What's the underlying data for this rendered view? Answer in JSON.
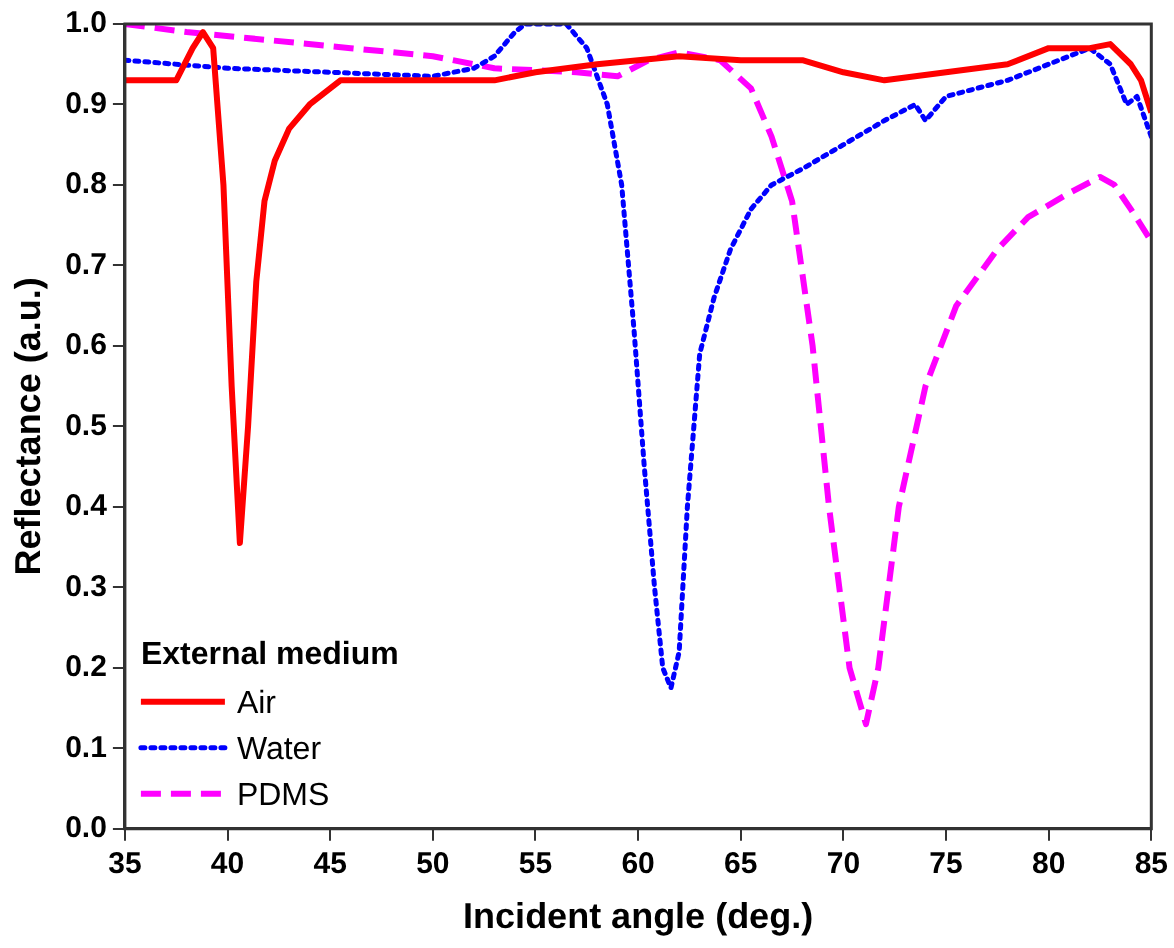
{
  "chart_data": {
    "type": "line",
    "xlabel": "Incident angle (deg.)",
    "ylabel": "Reflectance (a.u.)",
    "legend_title": "External medium",
    "legend": "bottom left",
    "grid": false,
    "marker": "none",
    "xlim": [
      35,
      85
    ],
    "xticks": [
      35,
      40,
      45,
      50,
      55,
      60,
      65,
      70,
      75,
      80,
      85
    ],
    "ylim": [
      0,
      1
    ],
    "yticks": [
      {
        "value": 0,
        "label": "0.0"
      },
      {
        "value": 0.1,
        "label": "0.1"
      },
      {
        "value": 0.2,
        "label": "0.2"
      },
      {
        "value": 0.3,
        "label": "0.3"
      },
      {
        "value": 0.4,
        "label": "0.4"
      },
      {
        "value": 0.5,
        "label": "0.5"
      },
      {
        "value": 0.6,
        "label": "0.6"
      },
      {
        "value": 0.7,
        "label": "0.7"
      },
      {
        "value": 0.8,
        "label": "0.8"
      },
      {
        "value": 0.9,
        "label": "0.9"
      },
      {
        "value": 1,
        "label": "1.0"
      }
    ],
    "series": [
      {
        "name": "Air",
        "color": "#ff0000",
        "line_style": "solid",
        "x": [
          35,
          37.5,
          38.3,
          38.8,
          39.3,
          39.8,
          40.2,
          40.6,
          41,
          41.4,
          41.8,
          42.3,
          43,
          44,
          45.5,
          48,
          53,
          55,
          58,
          62,
          65,
          68,
          70,
          72,
          75,
          78,
          80,
          82,
          83,
          84,
          84.5,
          85
        ],
        "values": [
          0.93,
          0.93,
          0.97,
          0.99,
          0.97,
          0.8,
          0.55,
          0.355,
          0.5,
          0.68,
          0.78,
          0.83,
          0.87,
          0.9,
          0.93,
          0.93,
          0.93,
          0.94,
          0.95,
          0.96,
          0.955,
          0.955,
          0.94,
          0.93,
          0.94,
          0.95,
          0.97,
          0.97,
          0.975,
          0.95,
          0.93,
          0.89
        ]
      },
      {
        "name": "Water",
        "color": "#0000ff",
        "line_style": "dotted",
        "x": [
          35,
          40,
          45,
          50,
          52,
          53,
          54,
          54.5,
          56.5,
          57.5,
          58.5,
          59.2,
          59.8,
          60.3,
          60.8,
          61.2,
          61.6,
          62,
          62.4,
          63,
          63.7,
          64.5,
          65.5,
          66.5,
          68,
          70,
          72,
          73.5,
          74,
          75,
          78,
          80,
          82,
          83,
          83.8,
          84.3,
          85
        ],
        "values": [
          0.955,
          0.945,
          0.94,
          0.935,
          0.945,
          0.96,
          0.99,
          1,
          1,
          0.97,
          0.9,
          0.8,
          0.62,
          0.45,
          0.3,
          0.2,
          0.175,
          0.22,
          0.4,
          0.59,
          0.66,
          0.72,
          0.77,
          0.8,
          0.82,
          0.85,
          0.88,
          0.9,
          0.88,
          0.91,
          0.93,
          0.95,
          0.97,
          0.95,
          0.9,
          0.91,
          0.86
        ]
      },
      {
        "name": "PDMS",
        "color": "#ff00ff",
        "line_style": "dashed",
        "x": [
          35,
          38,
          42,
          46,
          50,
          53,
          57,
          59,
          60.5,
          62,
          64,
          65.5,
          66.5,
          67.5,
          68.5,
          69.3,
          70.3,
          71.1,
          71.7,
          72.7,
          74,
          75.5,
          77.5,
          79,
          81,
          82.5,
          83.2,
          84,
          85
        ],
        "values": [
          1,
          0.99,
          0.98,
          0.97,
          0.96,
          0.945,
          0.94,
          0.935,
          0.955,
          0.965,
          0.955,
          0.92,
          0.86,
          0.78,
          0.6,
          0.4,
          0.2,
          0.13,
          0.2,
          0.4,
          0.55,
          0.65,
          0.72,
          0.76,
          0.79,
          0.81,
          0.8,
          0.77,
          0.73
        ]
      }
    ]
  }
}
